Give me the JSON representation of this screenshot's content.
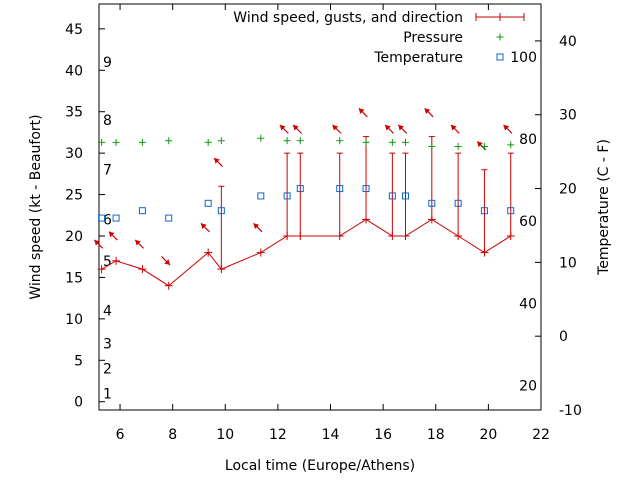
{
  "chart_data": {
    "type": "line",
    "xlabel": "Local time (Europe/Athens)",
    "ylabel_left": "Wind speed (kt - Beaufort)",
    "ylabel_right": "Temperature (C - F)",
    "xlim": [
      5.2,
      22
    ],
    "ylim_left": [
      -1,
      48
    ],
    "ylim_right": [
      -10,
      45
    ],
    "x_ticks": [
      6,
      8,
      10,
      12,
      14,
      16,
      18,
      20,
      22
    ],
    "y_left_ticks": [
      0,
      5,
      10,
      15,
      20,
      25,
      30,
      35,
      40,
      45
    ],
    "y_right_ticks": [
      -10,
      0,
      10,
      20,
      30,
      40
    ],
    "beaufort_labels": [
      {
        "label": "1",
        "kt": 1
      },
      {
        "label": "2",
        "kt": 4
      },
      {
        "label": "3",
        "kt": 7
      },
      {
        "label": "4",
        "kt": 11
      },
      {
        "label": "5",
        "kt": 17
      },
      {
        "label": "6",
        "kt": 22
      },
      {
        "label": "7",
        "kt": 28
      },
      {
        "label": "8",
        "kt": 34
      },
      {
        "label": "9",
        "kt": 41
      }
    ],
    "fahrenheit_labels": [
      {
        "label": "20",
        "c": -6.7
      },
      {
        "label": "40",
        "c": 4.4
      },
      {
        "label": "60",
        "c": 15.6
      },
      {
        "label": "80",
        "c": 26.7
      },
      {
        "label": "100",
        "c": 37.8
      }
    ],
    "legend": [
      {
        "label": "Wind speed, gusts, and direction",
        "color": "#cc0000",
        "marker": "errorbar"
      },
      {
        "label": "Pressure",
        "color": "#119911",
        "marker": "plus"
      },
      {
        "label": "Temperature",
        "color": "#1166cc",
        "marker": "square"
      }
    ],
    "legend_position": "top-right",
    "series": [
      {
        "name": "Wind speed, gusts, and direction",
        "color": "#cc0000",
        "points": [
          {
            "x": 5.3,
            "y": 16,
            "gust": 16,
            "dir": 135
          },
          {
            "x": 5.85,
            "y": 17,
            "gust": 17,
            "dir": 135
          },
          {
            "x": 6.85,
            "y": 16,
            "gust": 16,
            "dir": 135
          },
          {
            "x": 7.85,
            "y": 14,
            "gust": 14,
            "dir": 315
          },
          {
            "x": 9.35,
            "y": 18,
            "gust": 18,
            "dir": 135
          },
          {
            "x": 9.85,
            "y": 16,
            "gust": 26,
            "dir": 135
          },
          {
            "x": 11.35,
            "y": 18,
            "gust": 18,
            "dir": 135
          },
          {
            "x": 12.35,
            "y": 20,
            "gust": 30,
            "dir": 135
          },
          {
            "x": 12.85,
            "y": 20,
            "gust": 30,
            "dir": 135
          },
          {
            "x": 14.35,
            "y": 20,
            "gust": 30,
            "dir": 135
          },
          {
            "x": 15.35,
            "y": 22,
            "gust": 32,
            "dir": 135
          },
          {
            "x": 16.35,
            "y": 20,
            "gust": 30,
            "dir": 135
          },
          {
            "x": 16.85,
            "y": 20,
            "gust": 30,
            "dir": 135
          },
          {
            "x": 17.85,
            "y": 22,
            "gust": 32,
            "dir": 135
          },
          {
            "x": 18.85,
            "y": 20,
            "gust": 30,
            "dir": 135
          },
          {
            "x": 19.85,
            "y": 18,
            "gust": 28,
            "dir": 135
          },
          {
            "x": 20.85,
            "y": 20,
            "gust": 30,
            "dir": 135
          }
        ]
      },
      {
        "name": "Pressure",
        "color": "#119911",
        "points": [
          {
            "x": 5.3,
            "y": 31.3
          },
          {
            "x": 5.85,
            "y": 31.3
          },
          {
            "x": 6.85,
            "y": 31.3
          },
          {
            "x": 7.85,
            "y": 31.5
          },
          {
            "x": 9.35,
            "y": 31.3
          },
          {
            "x": 9.85,
            "y": 31.5
          },
          {
            "x": 11.35,
            "y": 31.8
          },
          {
            "x": 12.35,
            "y": 31.5
          },
          {
            "x": 12.85,
            "y": 31.5
          },
          {
            "x": 14.35,
            "y": 31.5
          },
          {
            "x": 15.35,
            "y": 31.3
          },
          {
            "x": 16.35,
            "y": 31.3
          },
          {
            "x": 16.85,
            "y": 31.3
          },
          {
            "x": 17.85,
            "y": 30.8
          },
          {
            "x": 18.85,
            "y": 30.8
          },
          {
            "x": 19.85,
            "y": 30.8
          },
          {
            "x": 20.85,
            "y": 31.0
          }
        ]
      },
      {
        "name": "Temperature",
        "color": "#1166cc",
        "points": [
          {
            "x": 5.3,
            "y": 16
          },
          {
            "x": 5.85,
            "y": 16
          },
          {
            "x": 6.85,
            "y": 17
          },
          {
            "x": 7.85,
            "y": 16
          },
          {
            "x": 9.35,
            "y": 18
          },
          {
            "x": 9.85,
            "y": 17
          },
          {
            "x": 11.35,
            "y": 19
          },
          {
            "x": 12.35,
            "y": 19
          },
          {
            "x": 12.85,
            "y": 20
          },
          {
            "x": 14.35,
            "y": 20
          },
          {
            "x": 15.35,
            "y": 20
          },
          {
            "x": 16.35,
            "y": 19
          },
          {
            "x": 16.85,
            "y": 19
          },
          {
            "x": 17.85,
            "y": 18
          },
          {
            "x": 18.85,
            "y": 18
          },
          {
            "x": 19.85,
            "y": 17
          },
          {
            "x": 20.85,
            "y": 17
          }
        ]
      }
    ],
    "grid": false
  }
}
